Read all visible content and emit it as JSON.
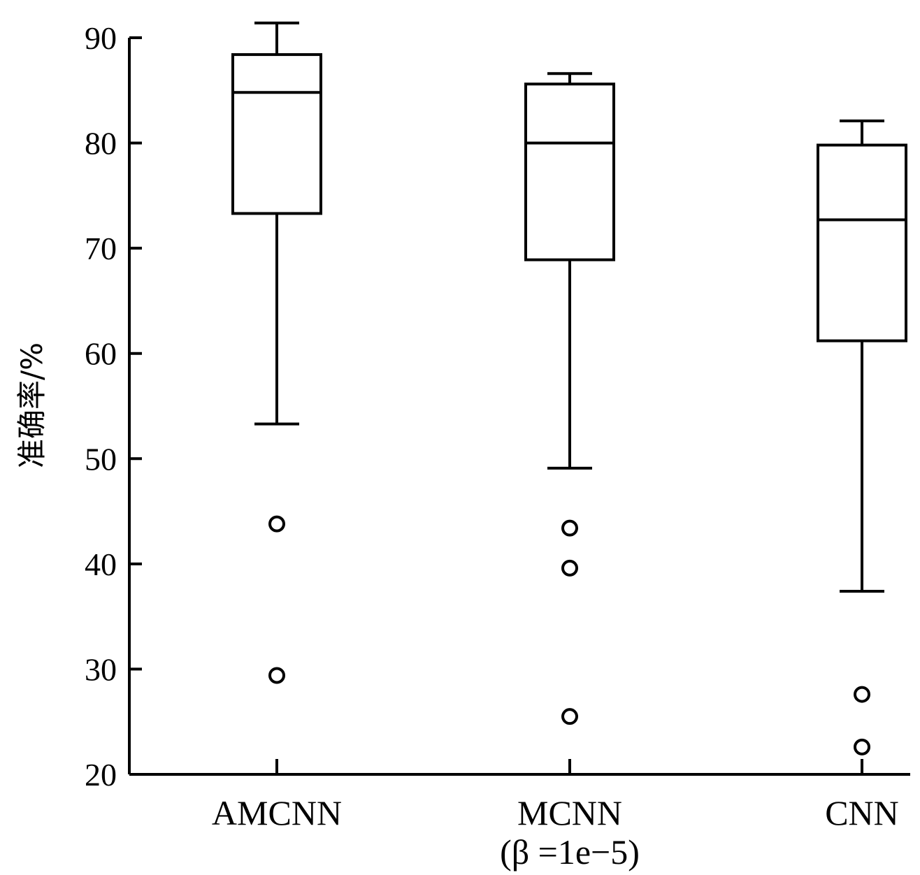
{
  "chart_data": {
    "type": "boxplot",
    "ylabel": "准确率/%",
    "ylim": [
      20,
      90
    ],
    "yticks": [
      20,
      30,
      40,
      50,
      60,
      70,
      80,
      90
    ],
    "categories": [
      {
        "label": "AMCNN",
        "sublabel": ""
      },
      {
        "label": "MCNN",
        "sublabel": "(β =1e−5)"
      },
      {
        "label": "CNN",
        "sublabel": ""
      }
    ],
    "boxes": [
      {
        "whisker_low": 53.3,
        "q1": 73.3,
        "median": 84.8,
        "q3": 88.4,
        "whisker_high": 91.4,
        "outliers": [
          43.8,
          29.4
        ]
      },
      {
        "whisker_low": 49.1,
        "q1": 68.9,
        "median": 80.0,
        "q3": 85.6,
        "whisker_high": 86.6,
        "outliers": [
          43.4,
          39.6,
          25.5
        ]
      },
      {
        "whisker_low": 37.4,
        "q1": 61.2,
        "median": 72.7,
        "q3": 79.8,
        "whisker_high": 82.1,
        "outliers": [
          27.6,
          22.6
        ]
      }
    ],
    "grid": false,
    "legend": "none"
  }
}
